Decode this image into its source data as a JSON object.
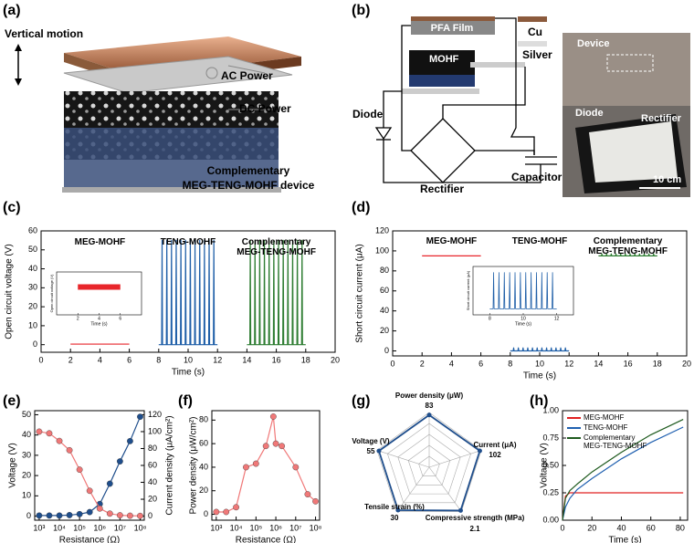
{
  "panel_labels": [
    "(a)",
    "(b)",
    "(c)",
    "(d)",
    "(e)",
    "(f)",
    "(g)",
    "(h)"
  ],
  "device": {
    "motion": "Vertical motion",
    "ac": "AC Power",
    "dc": "DC Power",
    "caption": [
      "Complementary",
      "MEG-TENG-MOHF device"
    ]
  },
  "circuit": {
    "pfa": "PFA Film",
    "cu": "Cu",
    "silver": "Silver",
    "mohf": "MOHF",
    "diode": "Diode",
    "rectifier": "Rectifier",
    "capacitor": "Capacitor"
  },
  "photo": {
    "device": "Device",
    "diode": "Diode",
    "rectifier": "Rectifier",
    "scale": "10 cm"
  },
  "chart_data": [
    {
      "type": "line",
      "x_label": "Time (s)",
      "y_label": "Open circuit voltage (V)",
      "legend": "above-series",
      "xlim": [
        0,
        20
      ],
      "xticks": [
        0,
        2,
        4,
        6,
        8,
        10,
        12,
        14,
        16,
        18,
        20
      ],
      "ylim": [
        -4,
        60
      ],
      "yticks": [
        0,
        10,
        20,
        30,
        40,
        50,
        60
      ],
      "series": [
        {
          "name": "MEG-MOHF",
          "color": "#e8262b",
          "x": [
            2,
            6
          ],
          "values": [
            0.3,
            0.3
          ]
        },
        {
          "name": "TENG-MOHF",
          "color": "#1f5fa8",
          "x": [
            8,
            8.2,
            8.23,
            8.26,
            8.52,
            8.55,
            8.58,
            8.84,
            8.87,
            8.9,
            9.16,
            9.19,
            9.22,
            9.48,
            9.51,
            9.54,
            9.8,
            9.83,
            9.86,
            10.12,
            10.15,
            10.18,
            10.44,
            10.47,
            10.5,
            10.76,
            10.79,
            10.82,
            11.08,
            11.11,
            11.14,
            11.4,
            11.43,
            11.46,
            11.72,
            11.75,
            11.78,
            12
          ],
          "values": [
            0,
            0,
            55,
            0,
            0,
            55,
            0,
            0,
            55,
            0,
            0,
            55,
            0,
            0,
            55,
            0,
            0,
            55,
            0,
            0,
            55,
            0,
            0,
            55,
            0,
            0,
            55,
            0,
            0,
            55,
            0,
            0,
            55,
            0,
            0,
            55,
            0,
            0
          ]
        },
        {
          "name": "Complementary MEG-TENG-MOHF",
          "color": "#2e7d32",
          "x": [
            14,
            14.2,
            14.23,
            14.26,
            14.52,
            14.55,
            14.58,
            14.84,
            14.87,
            14.9,
            15.16,
            15.19,
            15.22,
            15.48,
            15.51,
            15.54,
            15.8,
            15.83,
            15.86,
            16.12,
            16.15,
            16.18,
            16.44,
            16.47,
            16.5,
            16.76,
            16.79,
            16.82,
            17.08,
            17.11,
            17.14,
            17.4,
            17.43,
            17.46,
            17.72,
            17.75,
            17.78,
            18
          ],
          "values": [
            0,
            0,
            55,
            0,
            0,
            55,
            0,
            0,
            55,
            0,
            0,
            55,
            0,
            0,
            55,
            0,
            0,
            55,
            0,
            0,
            55,
            0,
            0,
            55,
            0,
            0,
            55,
            0,
            0,
            55,
            0,
            0,
            55,
            0,
            0,
            55,
            0,
            0
          ]
        }
      ],
      "inset": {
        "x_label": "Time (s)",
        "y_label": "Open circuit voltage (V)",
        "xlim": [
          0,
          8
        ],
        "xticks": [
          2,
          4,
          6
        ],
        "ylim": [
          -1,
          1
        ]
      }
    },
    {
      "type": "line",
      "x_label": "Time (s)",
      "y_label": "Short circuit current (μA)",
      "legend": "above-series",
      "xlim": [
        0,
        20
      ],
      "xticks": [
        0,
        2,
        4,
        6,
        8,
        10,
        12,
        14,
        16,
        18,
        20
      ],
      "ylim": [
        -5,
        120
      ],
      "yticks": [
        0,
        20,
        40,
        60,
        80,
        100,
        120
      ],
      "series": [
        {
          "name": "MEG-MOHF",
          "color": "#e8262b",
          "x": [
            2,
            6
          ],
          "values": [
            95,
            95
          ]
        },
        {
          "name": "TENG-MOHF",
          "color": "#1f5fa8",
          "x": [
            8,
            8.2,
            8.23,
            8.26,
            8.52,
            8.55,
            8.58,
            8.84,
            8.87,
            8.9,
            9.16,
            9.19,
            9.22,
            9.48,
            9.51,
            9.54,
            9.8,
            9.83,
            9.86,
            10.12,
            10.15,
            10.18,
            10.44,
            10.47,
            10.5,
            10.76,
            10.79,
            10.82,
            11.08,
            11.11,
            11.14,
            11.4,
            11.43,
            11.46,
            11.72,
            11.75,
            11.78,
            12
          ],
          "values": [
            0,
            0,
            3,
            0,
            0,
            3,
            0,
            0,
            3,
            0,
            0,
            3,
            0,
            0,
            3,
            0,
            0,
            3,
            0,
            0,
            3,
            0,
            0,
            3,
            0,
            0,
            3,
            0,
            0,
            3,
            0,
            0,
            3,
            0,
            0,
            3,
            0,
            0
          ]
        },
        {
          "name": "Complementary MEG-TENG-MOHF",
          "color": "#2e7d32",
          "x": [
            14,
            14.2,
            14.23,
            14.26,
            14.52,
            14.55,
            14.58,
            14.84,
            14.87,
            14.9,
            15.16,
            15.19,
            15.22,
            15.48,
            15.51,
            15.54,
            15.8,
            15.83,
            15.86,
            16.12,
            16.15,
            16.18,
            16.44,
            16.47,
            16.5,
            16.76,
            16.79,
            16.82,
            17.08,
            17.11,
            17.14,
            17.4,
            17.43,
            17.46,
            17.72,
            17.75,
            17.78,
            18
          ],
          "values": [
            95,
            95,
            97,
            95,
            95,
            97,
            95,
            95,
            97,
            95,
            95,
            97,
            95,
            95,
            97,
            95,
            95,
            97,
            95,
            95,
            97,
            95,
            95,
            97,
            95,
            95,
            97,
            95,
            95,
            97,
            95,
            95,
            97,
            95,
            95,
            97,
            95,
            95
          ]
        }
      ],
      "inset": {
        "x_label": "Time (s)",
        "y_label": "Short circuit current (μA)",
        "xlim": [
          7,
          13
        ],
        "xticks": [
          8,
          10,
          12
        ],
        "ylim": [
          -0.5,
          3.5
        ]
      }
    },
    {
      "type": "scatter",
      "fit": true,
      "x_scale": "log",
      "x_label": "Resistance (Ω)",
      "y_label": "Voltage (V)",
      "y2_label": "Current density (μA/cm²)",
      "xlim": [
        600,
        160000000
      ],
      "xticks": [
        {
          "value": 1000,
          "label": "10³"
        },
        {
          "value": 10000,
          "label": "10⁴"
        },
        {
          "value": 100000,
          "label": "10⁵"
        },
        {
          "value": 1000000,
          "label": "10⁶"
        },
        {
          "value": 10000000,
          "label": "10⁷"
        },
        {
          "value": 100000000,
          "label": "10⁸"
        }
      ],
      "ylim": [
        -2,
        52
      ],
      "yticks": [
        0,
        10,
        20,
        30,
        40,
        50
      ],
      "y2lim": [
        -4.8,
        124.8
      ],
      "y2ticks": [
        0,
        20,
        40,
        60,
        80,
        100,
        120
      ],
      "x": [
        1000,
        3160,
        10000,
        31600,
        100000,
        316000,
        1000000,
        3160000,
        10000000,
        31600000,
        100000000
      ],
      "series": [
        {
          "color": "#1f4e8c",
          "values": [
            0.3,
            0.3,
            0.3,
            0.5,
            1,
            2,
            6,
            16,
            27,
            37,
            49
          ]
        },
        {
          "color": "#f07878",
          "axis": "y2",
          "values": [
            100,
            98,
            89,
            78,
            55,
            30,
            9,
            3,
            1,
            0.5,
            0.3
          ]
        }
      ]
    },
    {
      "type": "scatter",
      "fit": true,
      "x_scale": "log",
      "x_label": "Resistance (Ω)",
      "y_label": "Power density (μW/cm²)",
      "xlim": [
        600,
        160000000
      ],
      "xticks": [
        {
          "value": 1000,
          "label": "10³"
        },
        {
          "value": 10000,
          "label": "10⁴"
        },
        {
          "value": 100000,
          "label": "10⁵"
        },
        {
          "value": 1000000,
          "label": "10⁶"
        },
        {
          "value": 10000000,
          "label": "10⁷"
        },
        {
          "value": 100000000,
          "label": "10⁸"
        }
      ],
      "ylim": [
        -5,
        88
      ],
      "yticks": [
        0,
        20,
        40,
        60,
        80
      ],
      "x": [
        1000,
        3160,
        10000,
        31600,
        100000,
        316000,
        750000,
        1000000,
        2000000,
        10000000,
        40000000,
        100000000
      ],
      "series": [
        {
          "color": "#f07878",
          "values": [
            2,
            2,
            6,
            40,
            43,
            58,
            83,
            60,
            58,
            40,
            17,
            11
          ]
        }
      ]
    },
    {
      "type": "radar",
      "color": "#1f4e8c",
      "rings": 5,
      "axes": [
        {
          "name": "Power density (μW)",
          "value": 83,
          "rlim": [
            0,
            87
          ]
        },
        {
          "name": "Current (μA)",
          "value": 102,
          "rlim": [
            0,
            105
          ]
        },
        {
          "name": "Compressive strength (MPa)",
          "value": 2.1,
          "rlim": [
            0,
            2.15
          ]
        },
        {
          "name": "Tensile strain (%)",
          "value": 30,
          "rlim": [
            0,
            31
          ]
        },
        {
          "name": "Voltage (V)",
          "value": 55,
          "rlim": [
            0,
            57
          ]
        }
      ]
    },
    {
      "type": "line",
      "x_label": "Time (s)",
      "y_label": "Voltage (V)",
      "legend": "upper-left",
      "xlim": [
        0,
        85
      ],
      "xticks": [
        0,
        20,
        40,
        60,
        80
      ],
      "ylim": [
        0,
        1
      ],
      "yticks": [
        {
          "value": 0,
          "label": "0.00"
        },
        {
          "value": 0.25,
          "label": "0.25"
        },
        {
          "value": 0.5,
          "label": "0.50"
        },
        {
          "value": 0.75,
          "label": "0.75"
        },
        {
          "value": 1,
          "label": "1.00"
        }
      ],
      "series": [
        {
          "name": "MEG-MOHF",
          "color": "#e02020",
          "x": [
            0,
            2,
            5,
            10,
            20,
            40,
            60,
            82
          ],
          "values": [
            0,
            0.22,
            0.25,
            0.25,
            0.25,
            0.25,
            0.25,
            0.25
          ]
        },
        {
          "name": "TENG-MOHF",
          "color": "#2060b0",
          "x": [
            0,
            2,
            5,
            10,
            20,
            40,
            60,
            82
          ],
          "values": [
            0,
            0.12,
            0.2,
            0.28,
            0.38,
            0.56,
            0.71,
            0.85
          ]
        },
        {
          "name": "Complementary MEG-TENG-MOHF",
          "color": "#1e5a1e",
          "x": [
            0,
            2,
            5,
            10,
            20,
            40,
            60,
            82
          ],
          "values": [
            0,
            0.2,
            0.27,
            0.33,
            0.44,
            0.62,
            0.78,
            0.92
          ]
        }
      ]
    }
  ]
}
